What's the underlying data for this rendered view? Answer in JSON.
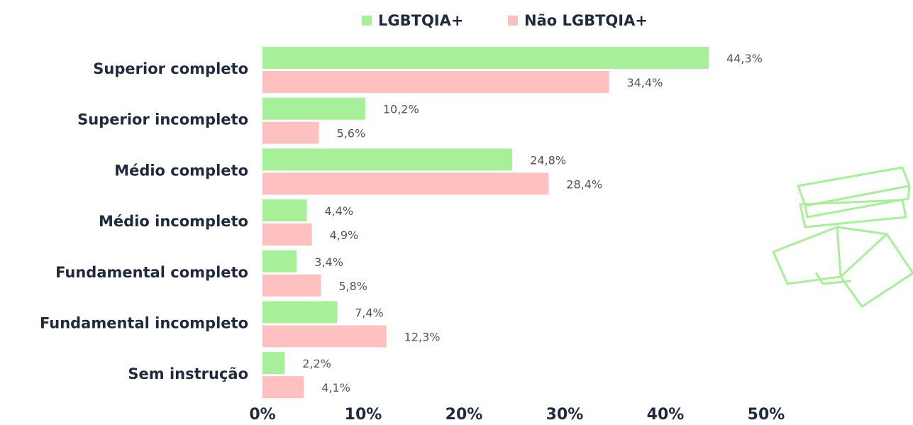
{
  "chart_data": {
    "type": "barh",
    "categories": [
      "Superior completo",
      "Superior incompleto",
      "Médio completo",
      "Médio incompleto",
      "Fundamental completo",
      "Fundamental incompleto",
      "Sem instrução"
    ],
    "series": [
      {
        "name": "LGBTQIA+",
        "color": "#a8ef9a",
        "values": [
          44.3,
          10.2,
          24.8,
          4.4,
          3.4,
          7.4,
          2.2
        ],
        "value_labels": [
          "44,3%",
          "10,2%",
          "24,8%",
          "4,4%",
          "3,4%",
          "7,4%",
          "2,2%"
        ]
      },
      {
        "name": "Não LGBTQIA+",
        "color": "#ffc0c0",
        "values": [
          34.4,
          5.6,
          28.4,
          4.9,
          5.8,
          12.3,
          4.1
        ],
        "value_labels": [
          "34,4%",
          "5,6%",
          "28,4%",
          "4,9%",
          "5,8%",
          "12,3%",
          "4,1%"
        ]
      }
    ],
    "xlim": [
      0,
      50
    ],
    "xticks": [
      {
        "value": 0,
        "label": "0%"
      },
      {
        "value": 10,
        "label": "10%"
      },
      {
        "value": 20,
        "label": "20%"
      },
      {
        "value": 30,
        "label": "30%"
      },
      {
        "value": 40,
        "label": "40%"
      },
      {
        "value": 50,
        "label": "50%"
      }
    ],
    "legend": "top"
  }
}
